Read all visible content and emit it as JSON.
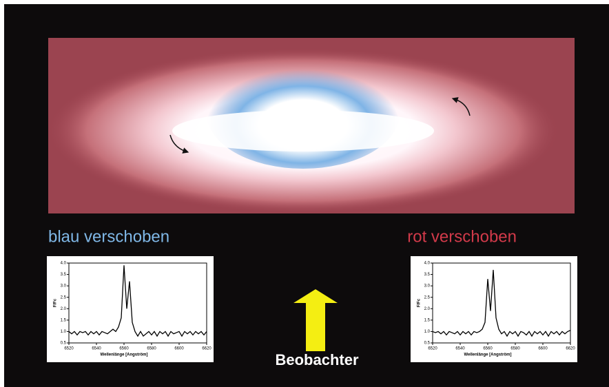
{
  "captions": {
    "left": "blau verschoben",
    "right": "rot verschoben",
    "observer": "Beobachter"
  },
  "chart_data": [
    {
      "type": "line",
      "ylabel": "F/Fc",
      "xlabel": "Wellenlänge [Angström]",
      "color": "#000000",
      "x": [
        6520,
        6522,
        6524,
        6526,
        6528,
        6530,
        6532,
        6534,
        6536,
        6538,
        6540,
        6542,
        6544,
        6546,
        6548,
        6550,
        6552,
        6554,
        6556,
        6558,
        6560,
        6562,
        6564,
        6566,
        6568,
        6570,
        6572,
        6574,
        6576,
        6578,
        6580,
        6582,
        6584,
        6586,
        6588,
        6590,
        6592,
        6594,
        6596,
        6598,
        6600,
        6602,
        6604,
        6606,
        6608,
        6610,
        6612,
        6614,
        6616,
        6618,
        6620
      ],
      "values": [
        1.0,
        0.9,
        1.0,
        0.85,
        1.0,
        0.95,
        1.0,
        0.85,
        1.0,
        0.9,
        1.0,
        0.85,
        1.0,
        0.95,
        0.9,
        1.0,
        1.1,
        1.0,
        1.2,
        1.6,
        3.9,
        2.0,
        3.2,
        1.4,
        1.0,
        0.8,
        1.0,
        0.8,
        0.9,
        1.0,
        0.85,
        1.0,
        0.8,
        1.0,
        0.9,
        1.0,
        0.8,
        1.0,
        0.9,
        0.95,
        1.0,
        0.8,
        1.0,
        0.9,
        1.0,
        0.85,
        1.0,
        0.9,
        1.0,
        0.85,
        1.0
      ],
      "xlim": [
        6520,
        6620
      ],
      "xticks": [
        6520,
        6540,
        6560,
        6580,
        6600,
        6620
      ],
      "ylim": [
        0.5,
        4.0
      ],
      "yticks": [
        0.5,
        {
          "value": 1,
          "label": "1.0"
        },
        1.5,
        {
          "value": 2,
          "label": "2.0"
        },
        2.5,
        {
          "value": 3,
          "label": "3.0"
        },
        3.5,
        {
          "value": 4,
          "label": "4.0"
        }
      ]
    },
    {
      "type": "line",
      "ylabel": "F/Fc",
      "xlabel": "Wellenlänge [Angström]",
      "color": "#000000",
      "x": [
        6520,
        6522,
        6524,
        6526,
        6528,
        6530,
        6532,
        6534,
        6536,
        6538,
        6540,
        6542,
        6544,
        6546,
        6548,
        6550,
        6552,
        6554,
        6556,
        6558,
        6560,
        6562,
        6564,
        6566,
        6568,
        6570,
        6572,
        6574,
        6576,
        6578,
        6580,
        6582,
        6584,
        6586,
        6588,
        6590,
        6592,
        6594,
        6596,
        6598,
        6600,
        6602,
        6604,
        6606,
        6608,
        6610,
        6612,
        6614,
        6616,
        6618,
        6620
      ],
      "values": [
        1.0,
        0.95,
        1.0,
        0.9,
        1.0,
        0.85,
        1.0,
        0.95,
        0.9,
        1.0,
        0.85,
        1.0,
        0.9,
        1.0,
        0.85,
        1.0,
        0.95,
        1.0,
        1.1,
        1.4,
        3.3,
        1.9,
        3.7,
        1.6,
        1.1,
        0.9,
        1.0,
        0.8,
        1.0,
        0.9,
        1.0,
        0.8,
        1.0,
        0.95,
        0.85,
        1.0,
        0.8,
        1.0,
        0.9,
        1.0,
        0.85,
        1.0,
        0.8,
        1.0,
        0.9,
        1.0,
        0.85,
        1.0,
        0.9,
        1.0,
        1.05
      ],
      "xlim": [
        6520,
        6620
      ],
      "xticks": [
        6520,
        6540,
        6560,
        6580,
        6600,
        6620
      ],
      "ylim": [
        0.5,
        4.0
      ],
      "yticks": [
        0.5,
        {
          "value": 1,
          "label": "1.0"
        },
        1.5,
        {
          "value": 2,
          "label": "2.0"
        },
        2.5,
        {
          "value": 3,
          "label": "3.0"
        },
        3.5,
        {
          "value": 4,
          "label": "4.0"
        }
      ]
    }
  ]
}
